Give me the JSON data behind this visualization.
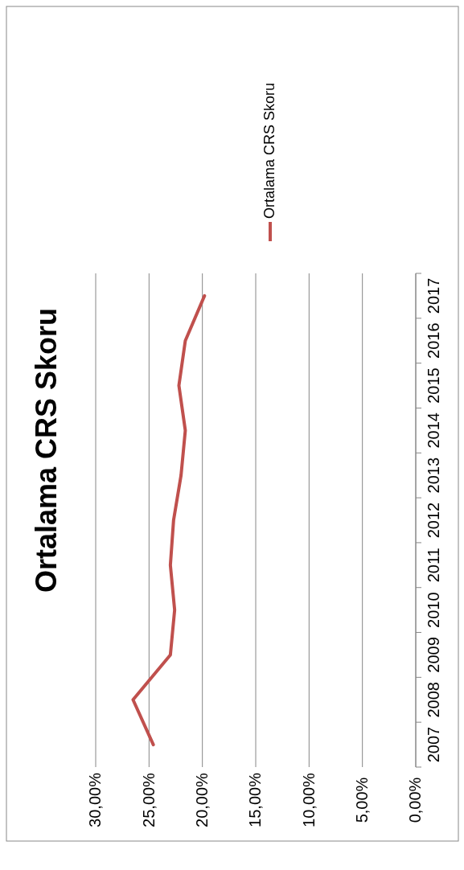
{
  "chart_data": {
    "type": "line",
    "title": "Ortalama CRS Skoru",
    "orientation": "horizontal",
    "categories": [
      "2017",
      "2016",
      "2015",
      "2014",
      "2013",
      "2012",
      "2011",
      "2010",
      "2009",
      "2008",
      "2007"
    ],
    "series": [
      {
        "name": "Ortalama CRS Skoru",
        "color": "#c0504d",
        "values": [
          19.8,
          21.6,
          22.2,
          21.6,
          22.0,
          22.7,
          23.0,
          22.6,
          23.0,
          26.5,
          24.6
        ]
      }
    ],
    "xlim": [
      30,
      0
    ],
    "xticks": [
      {
        "value": 30,
        "label": "30,00%"
      },
      {
        "value": 25,
        "label": "25,00%"
      },
      {
        "value": 20,
        "label": "20,00%"
      },
      {
        "value": 15,
        "label": "15,00%"
      },
      {
        "value": 10,
        "label": "10,00%"
      },
      {
        "value": 5,
        "label": "5,00%"
      },
      {
        "value": 0,
        "label": "0,00%"
      }
    ],
    "grid": "x",
    "legend": "top",
    "marker": "none",
    "line_style": "solid"
  }
}
